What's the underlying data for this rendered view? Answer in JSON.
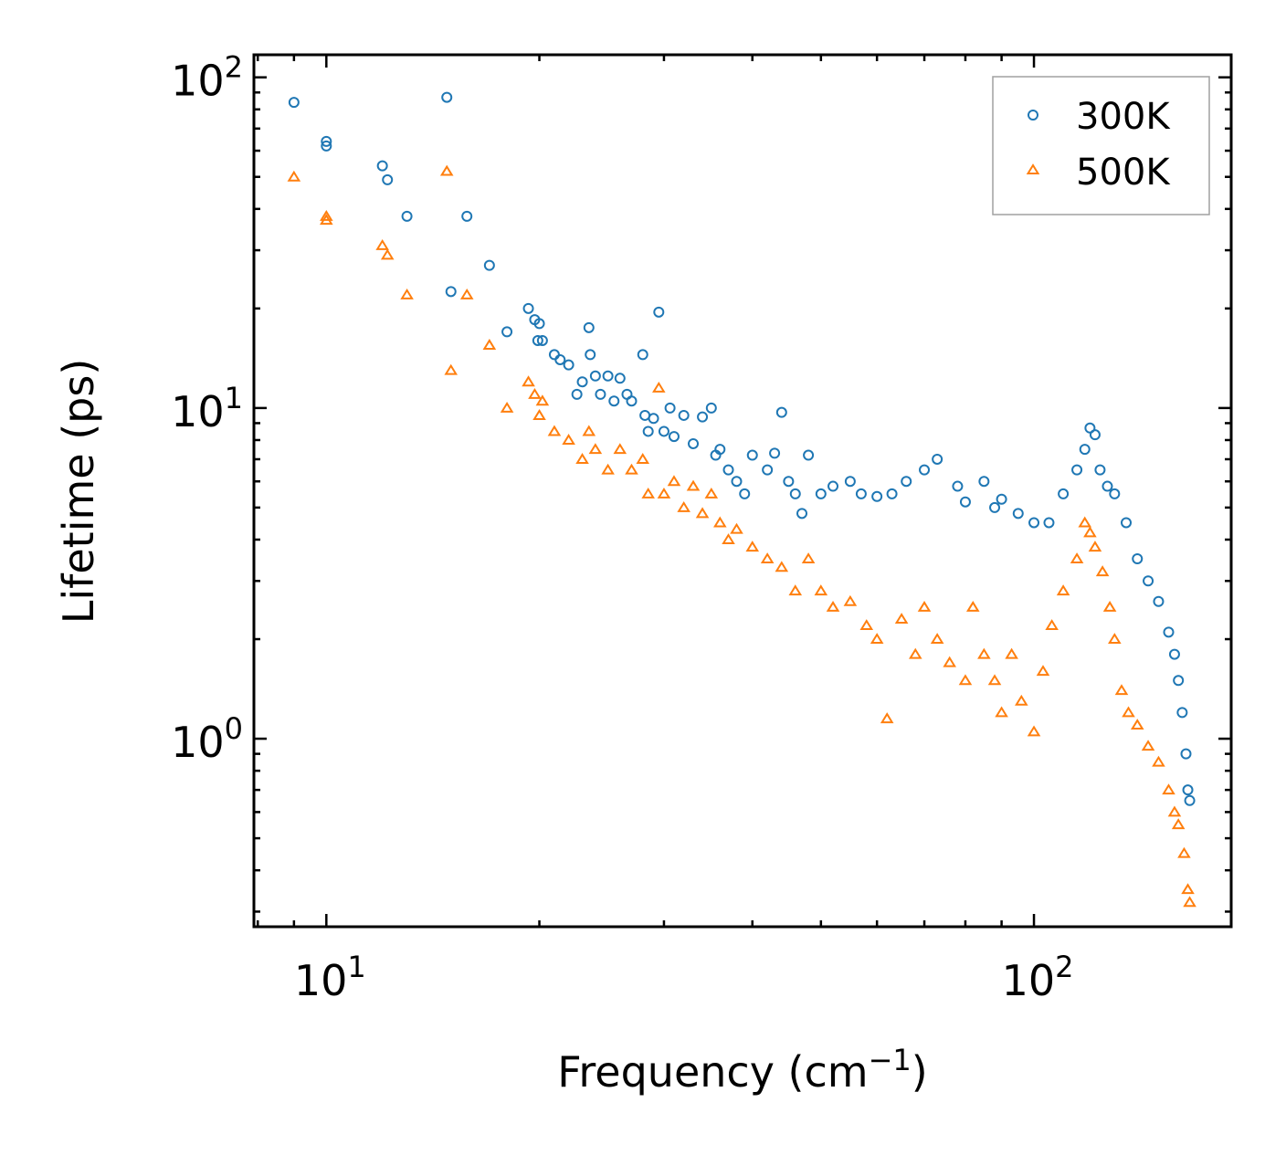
{
  "chart_data": {
    "type": "scatter",
    "title": "",
    "xlabel": "Frequency (cm",
    "xlabel_sup": "−1",
    "xlabel_end": ")",
    "ylabel": "Lifetime (ps)",
    "xscale": "log",
    "yscale": "log",
    "xlim": [
      7.9,
      190
    ],
    "ylim": [
      0.27,
      117
    ],
    "x_ticks": [
      {
        "value": 10,
        "base": "10",
        "exp": "1"
      },
      {
        "value": 100,
        "base": "10",
        "exp": "2"
      }
    ],
    "y_ticks": [
      {
        "value": 1,
        "base": "10",
        "exp": "0"
      },
      {
        "value": 10,
        "base": "10",
        "exp": "1"
      },
      {
        "value": 100,
        "base": "10",
        "exp": "2"
      }
    ],
    "legend_position": "top-right",
    "series": [
      {
        "name": "300K",
        "marker": "circle",
        "color": "#1f77b4",
        "points": [
          [
            9,
            84
          ],
          [
            10,
            64
          ],
          [
            10,
            62
          ],
          [
            12,
            54
          ],
          [
            12.2,
            49
          ],
          [
            13,
            38
          ],
          [
            14.8,
            87
          ],
          [
            15,
            22.5
          ],
          [
            15.8,
            38
          ],
          [
            17,
            27
          ],
          [
            18,
            17
          ],
          [
            19.3,
            20
          ],
          [
            19.7,
            18.5
          ],
          [
            19.9,
            16
          ],
          [
            20,
            18
          ],
          [
            20.2,
            16
          ],
          [
            21,
            14.5
          ],
          [
            21.4,
            14
          ],
          [
            22,
            13.5
          ],
          [
            22.6,
            11
          ],
          [
            23,
            12
          ],
          [
            23.5,
            17.5
          ],
          [
            23.6,
            14.5
          ],
          [
            24,
            12.5
          ],
          [
            24.4,
            11
          ],
          [
            25,
            12.5
          ],
          [
            25.5,
            10.5
          ],
          [
            26,
            12.3
          ],
          [
            26.6,
            11
          ],
          [
            27,
            10.5
          ],
          [
            28,
            14.5
          ],
          [
            28.2,
            9.5
          ],
          [
            28.5,
            8.5
          ],
          [
            29,
            9.3
          ],
          [
            29.5,
            19.5
          ],
          [
            30,
            8.5
          ],
          [
            30.6,
            10
          ],
          [
            31,
            8.2
          ],
          [
            32,
            9.5
          ],
          [
            33,
            7.8
          ],
          [
            34,
            9.4
          ],
          [
            35,
            10
          ],
          [
            35.5,
            7.2
          ],
          [
            36,
            7.5
          ],
          [
            37,
            6.5
          ],
          [
            38,
            6
          ],
          [
            39,
            5.5
          ],
          [
            40,
            7.2
          ],
          [
            42,
            6.5
          ],
          [
            43,
            7.3
          ],
          [
            44,
            9.7
          ],
          [
            45,
            6
          ],
          [
            46,
            5.5
          ],
          [
            47,
            4.8
          ],
          [
            48,
            7.2
          ],
          [
            50,
            5.5
          ],
          [
            52,
            5.8
          ],
          [
            55,
            6
          ],
          [
            57,
            5.5
          ],
          [
            60,
            5.4
          ],
          [
            63,
            5.5
          ],
          [
            66,
            6
          ],
          [
            70,
            6.5
          ],
          [
            73,
            7
          ],
          [
            78,
            5.8
          ],
          [
            80,
            5.2
          ],
          [
            85,
            6
          ],
          [
            88,
            5
          ],
          [
            90,
            5.3
          ],
          [
            95,
            4.8
          ],
          [
            100,
            4.5
          ],
          [
            105,
            4.5
          ],
          [
            110,
            5.5
          ],
          [
            115,
            6.5
          ],
          [
            118,
            7.5
          ],
          [
            120,
            8.7
          ],
          [
            122,
            8.3
          ],
          [
            124,
            6.5
          ],
          [
            127,
            5.8
          ],
          [
            130,
            5.5
          ],
          [
            135,
            4.5
          ],
          [
            140,
            3.5
          ],
          [
            145,
            3
          ],
          [
            150,
            2.6
          ],
          [
            155,
            2.1
          ],
          [
            158,
            1.8
          ],
          [
            160,
            1.5
          ],
          [
            162,
            1.2
          ],
          [
            164,
            0.9
          ],
          [
            165,
            0.7
          ],
          [
            166,
            0.65
          ]
        ]
      },
      {
        "name": "500K",
        "marker": "triangle",
        "color": "#ff7f0e",
        "points": [
          [
            9,
            50
          ],
          [
            10,
            38
          ],
          [
            10,
            37
          ],
          [
            12,
            31
          ],
          [
            12.2,
            29
          ],
          [
            13,
            22
          ],
          [
            14.8,
            52
          ],
          [
            15,
            13
          ],
          [
            15.8,
            22
          ],
          [
            17,
            15.5
          ],
          [
            18,
            10
          ],
          [
            19.3,
            12
          ],
          [
            19.7,
            11
          ],
          [
            20,
            9.5
          ],
          [
            20.2,
            10.5
          ],
          [
            21,
            8.5
          ],
          [
            22,
            8
          ],
          [
            23,
            7
          ],
          [
            23.5,
            8.5
          ],
          [
            24,
            7.5
          ],
          [
            25,
            6.5
          ],
          [
            26,
            7.5
          ],
          [
            27,
            6.5
          ],
          [
            28,
            7
          ],
          [
            28.5,
            5.5
          ],
          [
            29.5,
            11.5
          ],
          [
            30,
            5.5
          ],
          [
            31,
            6
          ],
          [
            32,
            5
          ],
          [
            33,
            5.8
          ],
          [
            34,
            4.8
          ],
          [
            35,
            5.5
          ],
          [
            36,
            4.5
          ],
          [
            37,
            4
          ],
          [
            38,
            4.3
          ],
          [
            40,
            3.8
          ],
          [
            42,
            3.5
          ],
          [
            44,
            3.3
          ],
          [
            46,
            2.8
          ],
          [
            48,
            3.5
          ],
          [
            50,
            2.8
          ],
          [
            52,
            2.5
          ],
          [
            55,
            2.6
          ],
          [
            58,
            2.2
          ],
          [
            60,
            2
          ],
          [
            62,
            1.15
          ],
          [
            65,
            2.3
          ],
          [
            68,
            1.8
          ],
          [
            70,
            2.5
          ],
          [
            73,
            2
          ],
          [
            76,
            1.7
          ],
          [
            80,
            1.5
          ],
          [
            82,
            2.5
          ],
          [
            85,
            1.8
          ],
          [
            88,
            1.5
          ],
          [
            90,
            1.2
          ],
          [
            93,
            1.8
          ],
          [
            96,
            1.3
          ],
          [
            100,
            1.05
          ],
          [
            103,
            1.6
          ],
          [
            106,
            2.2
          ],
          [
            110,
            2.8
          ],
          [
            115,
            3.5
          ],
          [
            118,
            4.5
          ],
          [
            120,
            4.2
          ],
          [
            122,
            3.8
          ],
          [
            125,
            3.2
          ],
          [
            128,
            2.5
          ],
          [
            130,
            2
          ],
          [
            133,
            1.4
          ],
          [
            136,
            1.2
          ],
          [
            140,
            1.1
          ],
          [
            145,
            0.95
          ],
          [
            150,
            0.85
          ],
          [
            155,
            0.7
          ],
          [
            158,
            0.6
          ],
          [
            160,
            0.55
          ],
          [
            163,
            0.45
          ],
          [
            165,
            0.35
          ],
          [
            166,
            0.32
          ]
        ]
      }
    ]
  }
}
